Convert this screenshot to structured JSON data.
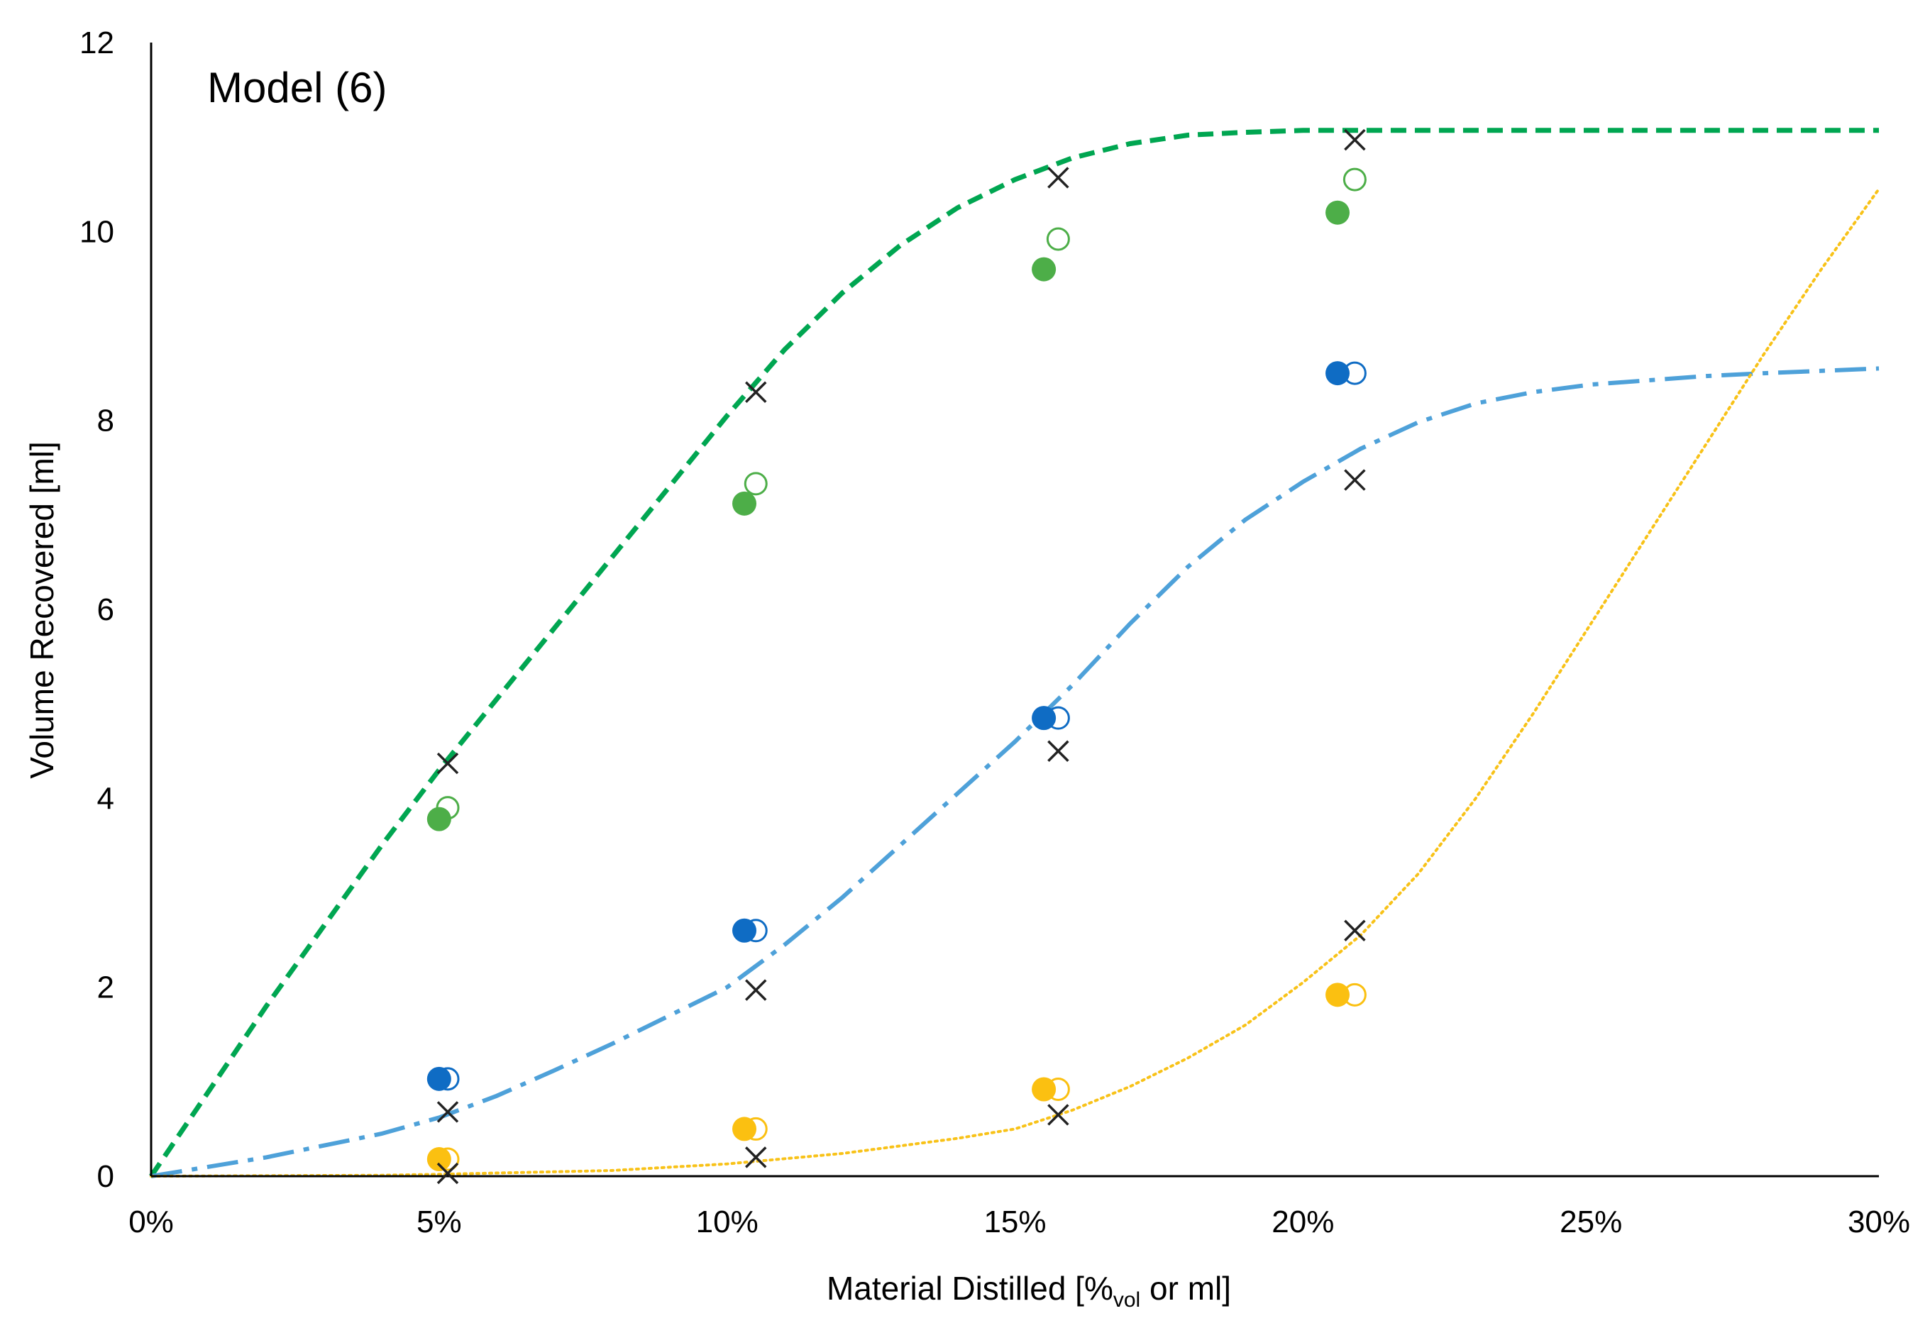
{
  "chart_data": {
    "type": "scatter",
    "annotation": "Model (6)",
    "xlabel": {
      "prefix": "Material Distilled [%",
      "subscript": "vol",
      "suffix": " or ml]"
    },
    "ylabel": "Volume Recovered [ml]",
    "xlim": [
      0,
      30
    ],
    "ylim": [
      0,
      12
    ],
    "x_ticks": [
      {
        "value": 0,
        "label": "0%"
      },
      {
        "value": 5,
        "label": "5%"
      },
      {
        "value": 10,
        "label": "10%"
      },
      {
        "value": 15,
        "label": "15%"
      },
      {
        "value": 20,
        "label": "20%"
      },
      {
        "value": 25,
        "label": "25%"
      },
      {
        "value": 30,
        "label": "30%"
      }
    ],
    "y_ticks": [
      {
        "value": 0,
        "label": "0"
      },
      {
        "value": 2,
        "label": "2"
      },
      {
        "value": 4,
        "label": "4"
      },
      {
        "value": 6,
        "label": "6"
      },
      {
        "value": 8,
        "label": "8"
      },
      {
        "value": 10,
        "label": "10"
      },
      {
        "value": 12,
        "label": "12"
      }
    ],
    "grid": false,
    "legend": "none",
    "colors": {
      "green_line": "#00A651",
      "green_marker": "#4DAE48",
      "blue_line": "#4EA1D9",
      "blue_marker": "#0F6CC4",
      "yellow_line": "#F8C218",
      "yellow_marker": "#FBC011",
      "cross": "#222222",
      "axis": "#000000"
    },
    "model_curves": [
      {
        "color_key": "green_line",
        "style": "dashed",
        "points": [
          [
            0,
            0
          ],
          [
            1,
            0.9
          ],
          [
            2,
            1.8
          ],
          [
            3,
            2.65
          ],
          [
            4,
            3.5
          ],
          [
            5,
            4.3
          ],
          [
            6,
            5.05
          ],
          [
            7,
            5.8
          ],
          [
            8,
            6.55
          ],
          [
            9,
            7.3
          ],
          [
            10,
            8.05
          ],
          [
            11,
            8.75
          ],
          [
            12,
            9.35
          ],
          [
            13,
            9.85
          ],
          [
            14,
            10.25
          ],
          [
            15,
            10.55
          ],
          [
            16,
            10.78
          ],
          [
            17,
            10.93
          ],
          [
            18,
            11.02
          ],
          [
            19,
            11.05
          ],
          [
            20,
            11.07
          ],
          [
            22,
            11.07
          ],
          [
            25,
            11.07
          ],
          [
            30,
            11.07
          ]
        ]
      },
      {
        "color_key": "blue_line",
        "style": "dash-dot",
        "points": [
          [
            0,
            0
          ],
          [
            2,
            0.2
          ],
          [
            4,
            0.45
          ],
          [
            5,
            0.62
          ],
          [
            6,
            0.85
          ],
          [
            7,
            1.12
          ],
          [
            8,
            1.4
          ],
          [
            9,
            1.7
          ],
          [
            10,
            2.0
          ],
          [
            11,
            2.45
          ],
          [
            12,
            2.95
          ],
          [
            13,
            3.5
          ],
          [
            14,
            4.05
          ],
          [
            15,
            4.6
          ],
          [
            16,
            5.2
          ],
          [
            17,
            5.85
          ],
          [
            18,
            6.45
          ],
          [
            19,
            6.95
          ],
          [
            20,
            7.35
          ],
          [
            21,
            7.7
          ],
          [
            22,
            7.98
          ],
          [
            23,
            8.18
          ],
          [
            24,
            8.3
          ],
          [
            25,
            8.38
          ],
          [
            27,
            8.47
          ],
          [
            28,
            8.5
          ],
          [
            30,
            8.55
          ]
        ]
      },
      {
        "color_key": "yellow_line",
        "style": "dotted",
        "points": [
          [
            0,
            0
          ],
          [
            4,
            0.01
          ],
          [
            5,
            0.02
          ],
          [
            8,
            0.06
          ],
          [
            10,
            0.13
          ],
          [
            12,
            0.24
          ],
          [
            14,
            0.4
          ],
          [
            15,
            0.5
          ],
          [
            16,
            0.7
          ],
          [
            17,
            0.95
          ],
          [
            18,
            1.25
          ],
          [
            19,
            1.6
          ],
          [
            20,
            2.05
          ],
          [
            21,
            2.55
          ],
          [
            22,
            3.2
          ],
          [
            23,
            4.0
          ],
          [
            24,
            4.9
          ],
          [
            25,
            5.85
          ],
          [
            26,
            6.8
          ],
          [
            27,
            7.75
          ],
          [
            28,
            8.7
          ],
          [
            29,
            9.6
          ],
          [
            30,
            10.45
          ]
        ]
      }
    ],
    "filled_markers": [
      {
        "color_key": "green_marker",
        "points": [
          [
            5,
            3.78
          ],
          [
            10.3,
            7.12
          ],
          [
            15.5,
            9.6
          ],
          [
            20.6,
            10.2
          ]
        ]
      },
      {
        "color_key": "blue_marker",
        "points": [
          [
            5,
            1.03
          ],
          [
            10.3,
            2.6
          ],
          [
            15.5,
            4.85
          ],
          [
            20.6,
            8.5
          ]
        ]
      },
      {
        "color_key": "yellow_marker",
        "points": [
          [
            5,
            0.18
          ],
          [
            10.3,
            0.5
          ],
          [
            15.5,
            0.92
          ],
          [
            20.6,
            1.92
          ]
        ]
      }
    ],
    "open_markers": [
      {
        "color_key": "green_marker",
        "points": [
          [
            5.15,
            3.9
          ],
          [
            10.5,
            7.33
          ],
          [
            15.75,
            9.92
          ],
          [
            20.9,
            10.55
          ]
        ]
      },
      {
        "color_key": "blue_marker",
        "points": [
          [
            5.15,
            1.03
          ],
          [
            10.5,
            2.6
          ],
          [
            15.75,
            4.85
          ],
          [
            20.9,
            8.5
          ]
        ]
      },
      {
        "color_key": "yellow_marker",
        "points": [
          [
            5.15,
            0.18
          ],
          [
            10.5,
            0.5
          ],
          [
            15.75,
            0.92
          ],
          [
            20.9,
            1.92
          ]
        ]
      }
    ],
    "cross_markers": {
      "color_key": "cross",
      "points": [
        [
          5.15,
          4.37
        ],
        [
          10.5,
          8.3
        ],
        [
          15.75,
          10.57
        ],
        [
          20.9,
          10.97
        ],
        [
          5.15,
          0.68
        ],
        [
          10.5,
          1.97
        ],
        [
          15.75,
          4.5
        ],
        [
          20.9,
          7.37
        ],
        [
          5.15,
          0.03
        ],
        [
          10.5,
          0.2
        ],
        [
          15.75,
          0.65
        ],
        [
          20.9,
          2.6
        ]
      ]
    }
  }
}
